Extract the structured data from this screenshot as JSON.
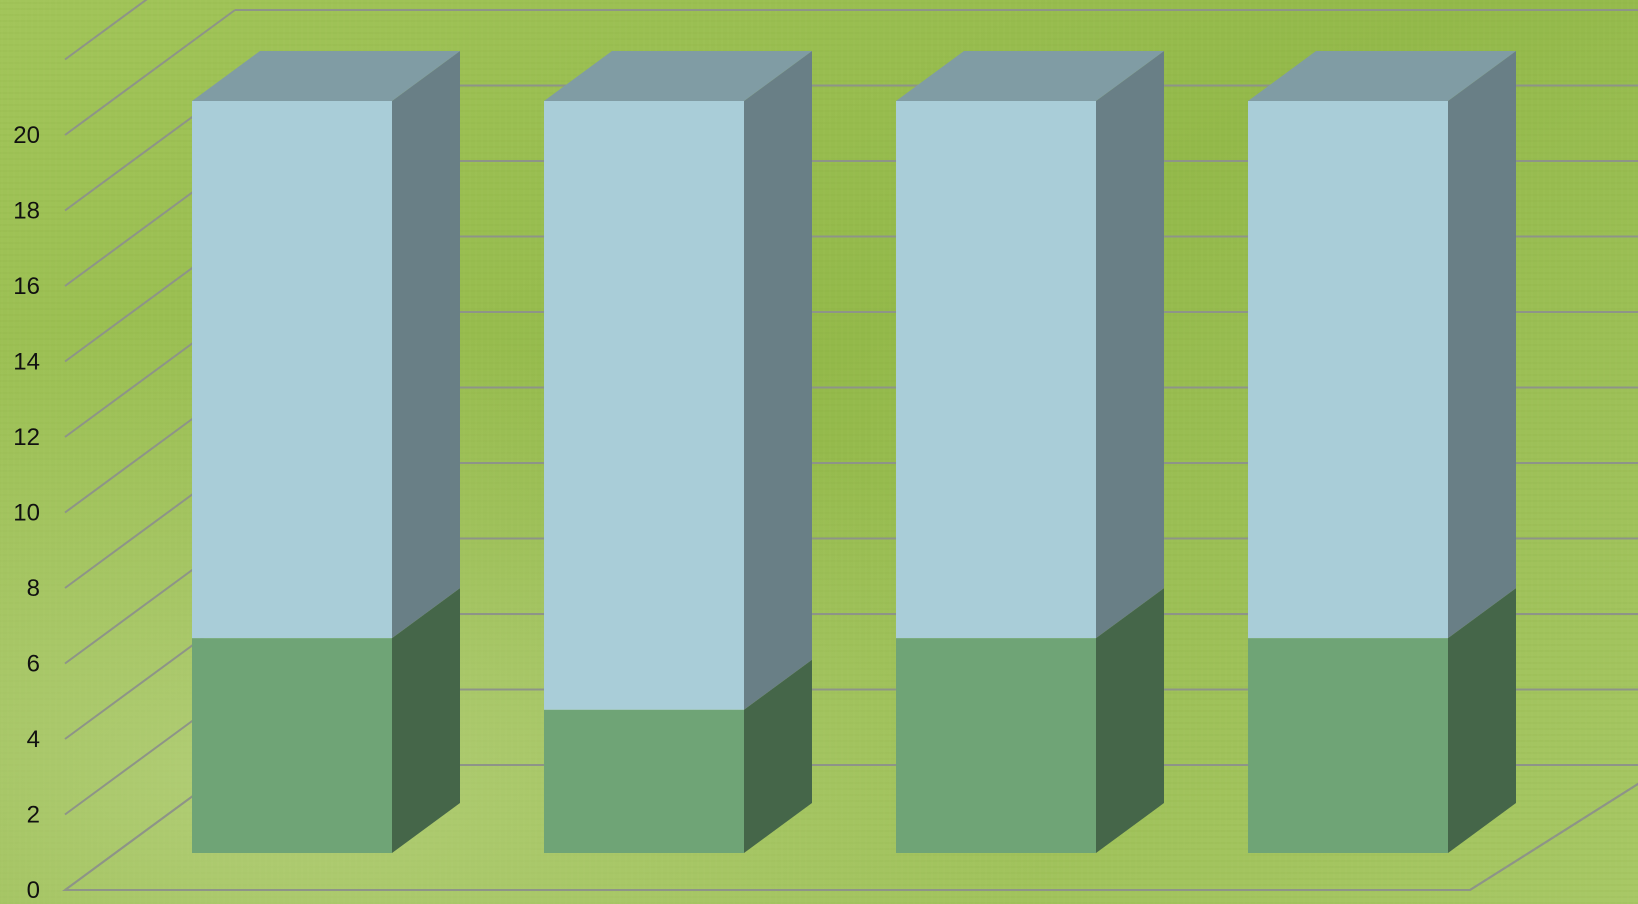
{
  "chart_data": {
    "type": "bar",
    "stacked": true,
    "three_d": true,
    "categories": [
      "",
      "",
      "",
      ""
    ],
    "series": [
      {
        "values": [
          6,
          4,
          6,
          6
        ],
        "color": "#6FA476"
      },
      {
        "values": [
          15,
          17,
          15,
          15
        ],
        "color": "#A9CDD8"
      }
    ],
    "ylim": [
      0,
      20
    ],
    "ytick_step": 2,
    "yticks": [
      "0",
      "2",
      "4",
      "6",
      "8",
      "10",
      "12",
      "14",
      "16",
      "18",
      "20"
    ],
    "grid": true,
    "legend": "none",
    "title": "",
    "xlabel": "",
    "ylabel": ""
  },
  "theme": {
    "background": "#9DC04F",
    "gridline": "#8E9488",
    "axis_text": "#111111"
  }
}
